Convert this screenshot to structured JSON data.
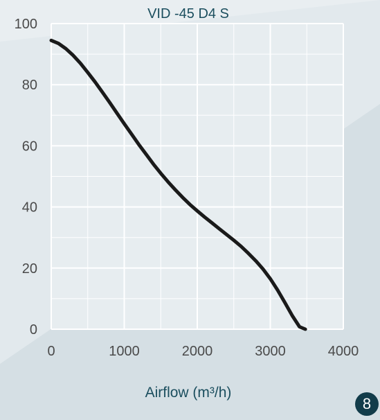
{
  "colors": {
    "title": "#1b4e5e",
    "axis_text": "#4a4a4a",
    "curve": "#1a1a1a",
    "grid": "#ffffff",
    "badge_bg": "#123c4a",
    "badge_text": "#ffffff"
  },
  "page_badge": "8",
  "chart_data": {
    "type": "line",
    "title": "VID -45 D4 S",
    "xlabel": "Airflow (m³/h)",
    "ylabel": "",
    "xlim": [
      0,
      4000
    ],
    "ylim": [
      0,
      100
    ],
    "x_ticks": [
      0,
      1000,
      2000,
      3000,
      4000
    ],
    "y_ticks": [
      0,
      20,
      40,
      60,
      80,
      100
    ],
    "grid": true,
    "series": [
      {
        "x": [
          0,
          100,
          200,
          300,
          400,
          500,
          600,
          700,
          800,
          900,
          1000,
          1100,
          1200,
          1300,
          1400,
          1500,
          1600,
          1700,
          1800,
          1900,
          2000,
          2100,
          2200,
          2300,
          2400,
          2500,
          2600,
          2700,
          2800,
          2900,
          3000,
          3100,
          3200,
          3300,
          3400,
          3480
        ],
        "y": [
          94.5,
          93.5,
          91.8,
          89.6,
          87.0,
          84.0,
          80.9,
          77.6,
          74.2,
          70.7,
          67.2,
          63.8,
          60.4,
          57.2,
          54.0,
          51.0,
          48.2,
          45.6,
          43.1,
          40.8,
          38.7,
          36.7,
          34.8,
          32.9,
          31.0,
          29.1,
          27.1,
          24.8,
          22.4,
          19.7,
          16.5,
          12.8,
          8.7,
          4.5,
          0.8,
          0
        ]
      }
    ]
  }
}
